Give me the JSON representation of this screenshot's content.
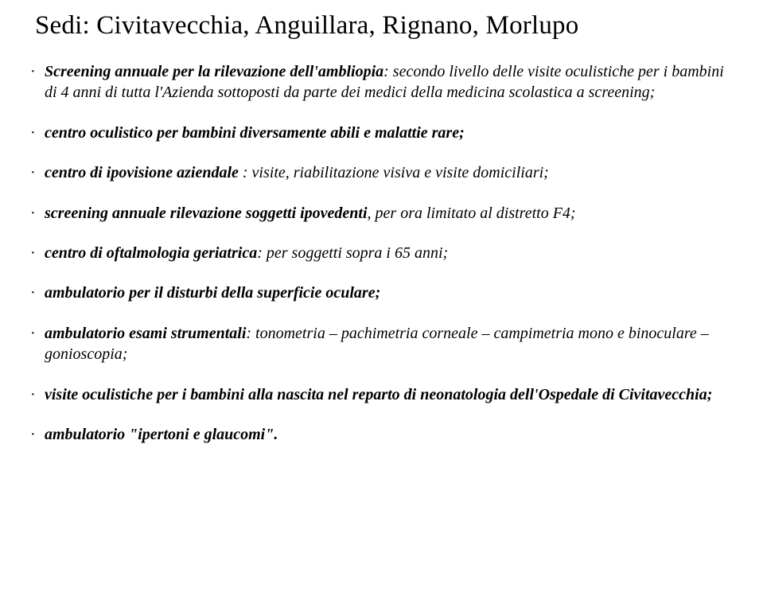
{
  "title": "Sedi: Civitavecchia, Anguillara, Rignano, Morlupo",
  "items": [
    {
      "segments": [
        {
          "bold": true,
          "text": "Screening annuale per la rilevazione dell'ambliopia"
        },
        {
          "bold": false,
          "text": ": secondo livello delle visite oculistiche per i bambini di 4 anni di tutta l'Azienda sottoposti da parte dei medici della medicina scolastica a screening;"
        }
      ]
    },
    {
      "segments": [
        {
          "bold": true,
          "text": "centro oculistico per bambini diversamente abili e malattie rare;"
        }
      ]
    },
    {
      "segments": [
        {
          "bold": true,
          "text": "centro di ipovisione aziendale "
        },
        {
          "bold": false,
          "text": ": visite, riabilitazione visiva e visite domiciliari;"
        }
      ]
    },
    {
      "segments": [
        {
          "bold": true,
          "text": "screening annuale rilevazione soggetti ipovedenti"
        },
        {
          "bold": false,
          "text": ", per ora limitato al distretto F4;"
        }
      ]
    },
    {
      "segments": [
        {
          "bold": true,
          "text": "centro di oftalmologia geriatrica"
        },
        {
          "bold": false,
          "text": ": per soggetti sopra i 65 anni;"
        }
      ]
    },
    {
      "segments": [
        {
          "bold": true,
          "text": "ambulatorio per il disturbi della superficie oculare;"
        }
      ]
    },
    {
      "segments": [
        {
          "bold": true,
          "text": "ambulatorio esami strumentali"
        },
        {
          "bold": false,
          "text": ": tonometria – pachimetria corneale – campimetria mono e binoculare – gonioscopia;"
        }
      ]
    },
    {
      "segments": [
        {
          "bold": true,
          "text": "visite oculistiche per i bambini alla nascita nel reparto di neonatologia dell'Ospedale di Civitavecchia;"
        }
      ]
    },
    {
      "segments": [
        {
          "bold": true,
          "text": "ambulatorio \"ipertoni e glaucomi\"."
        }
      ]
    }
  ]
}
